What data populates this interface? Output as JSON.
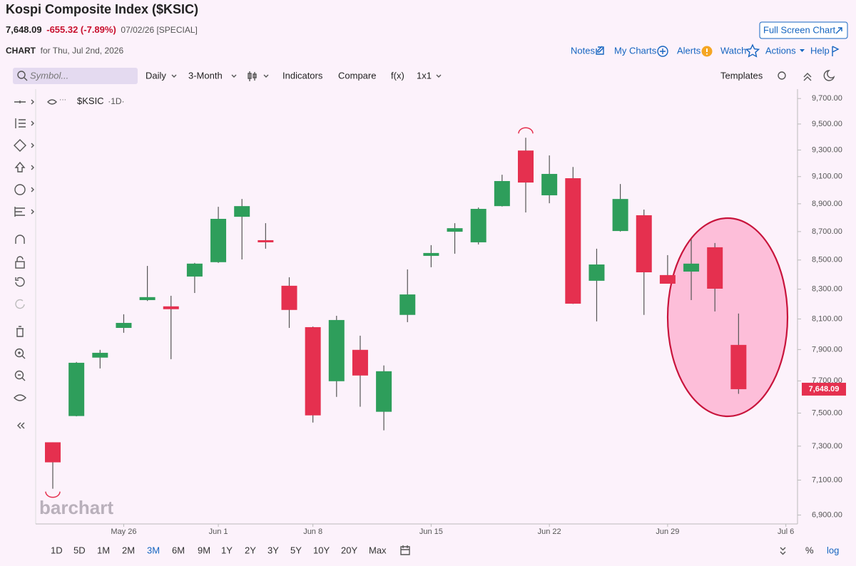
{
  "header": {
    "title": "Kospi Composite Index ($KSIC)",
    "last": "7,648.09",
    "change": "-655.32 (-7.89%)",
    "date": "07/02/26 [SPECIAL]",
    "chart_label": "CHART",
    "chart_date": "for Thu, Jul 2nd, 2026",
    "full_screen": "Full Screen Chart"
  },
  "links": [
    "Notes",
    "My Charts",
    "Alerts",
    "Watch",
    "Actions",
    "Help"
  ],
  "toolbar": {
    "search": "Symbol...",
    "items": [
      "Daily",
      "3-Month",
      "Indicators",
      "Compare",
      "f(x)",
      "1x1"
    ],
    "templates": "Templates"
  },
  "legend": {
    "symbol": "$KSIC",
    "interval": "·1D·"
  },
  "watermark": "barchart",
  "ranges": [
    "1D",
    "5D",
    "1M",
    "2M",
    "3M",
    "6M",
    "9M",
    "1Y",
    "2Y",
    "3Y",
    "5Y",
    "10Y",
    "20Y",
    "Max"
  ],
  "selected_range": 4,
  "scale_options": [
    "%",
    "log"
  ],
  "chart_data": {
    "type": "candlestick",
    "categories": [
      null,
      null,
      null,
      "May 26",
      null,
      null,
      null,
      "Jun 1",
      null,
      null,
      null,
      "Jun 8",
      null,
      null,
      null,
      null,
      "Jun 15",
      null,
      null,
      null,
      null,
      "Jun 22",
      null,
      null,
      null,
      null,
      "Jun 29",
      null,
      null,
      null,
      null,
      "Jul 6"
    ],
    "open": [
      7323,
      7482,
      7848,
      8041,
      8226,
      8184,
      8386,
      8485,
      8806,
      8639,
      8323,
      8046,
      7698,
      7898,
      7508,
      8127,
      8529,
      8699,
      8624,
      8883,
      9296,
      8962,
      9088,
      8357,
      8704,
      8817,
      8396,
      8420,
      8589,
      7930,
      null,
      null
    ],
    "high": [
      7323,
      7820,
      7898,
      8131,
      8459,
      8255,
      8480,
      8878,
      8935,
      8760,
      8381,
      8050,
      8121,
      7990,
      7798,
      8435,
      8604,
      8760,
      8873,
      9114,
      9394,
      9259,
      9172,
      8579,
      9045,
      8858,
      8534,
      8644,
      8619,
      8136,
      null,
      null
    ],
    "low": [
      7050,
      7480,
      7779,
      8009,
      8220,
      7838,
      8274,
      8480,
      8504,
      8579,
      8041,
      7442,
      7600,
      7539,
      7395,
      8079,
      8450,
      8544,
      8609,
      8880,
      8837,
      8904,
      8200,
      8084,
      8700,
      8127,
      8337,
      8226,
      8150,
      7619,
      null,
      null
    ],
    "close": [
      7204,
      7815,
      7879,
      8074,
      8246,
      8165,
      8475,
      8791,
      8883,
      8624,
      8160,
      7486,
      8093,
      7734,
      7761,
      8264,
      8549,
      8724,
      8863,
      9067,
      9056,
      9120,
      8202,
      8469,
      8935,
      8415,
      8337,
      8475,
      8303,
      7648.09,
      null,
      null
    ],
    "up_color": "#2e9e5b",
    "down_color": "#e5304f",
    "log_scale": true,
    "grid": false,
    "ylim": [
      6850,
      9775
    ],
    "yticks": [
      {
        "value": 9700,
        "label": "9,700.00"
      },
      {
        "value": 9500,
        "label": "9,500.00"
      },
      {
        "value": 9300,
        "label": "9,300.00"
      },
      {
        "value": 9100,
        "label": "9,100.00"
      },
      {
        "value": 8900,
        "label": "8,900.00"
      },
      {
        "value": 8700,
        "label": "8,700.00"
      },
      {
        "value": 8500,
        "label": "8,500.00"
      },
      {
        "value": 8300,
        "label": "8,300.00"
      },
      {
        "value": 8100,
        "label": "8,100.00"
      },
      {
        "value": 7900,
        "label": "7,900.00"
      },
      {
        "value": 7700,
        "label": "7,700.00"
      },
      {
        "value": 7500,
        "label": "7,500.00"
      },
      {
        "value": 7300,
        "label": "7,300.00"
      },
      {
        "value": 7100,
        "label": "7,100.00"
      },
      {
        "value": 6900,
        "label": "6,900.00"
      }
    ],
    "last_price": {
      "value": 7648.09,
      "label": "7,648.09"
    }
  }
}
